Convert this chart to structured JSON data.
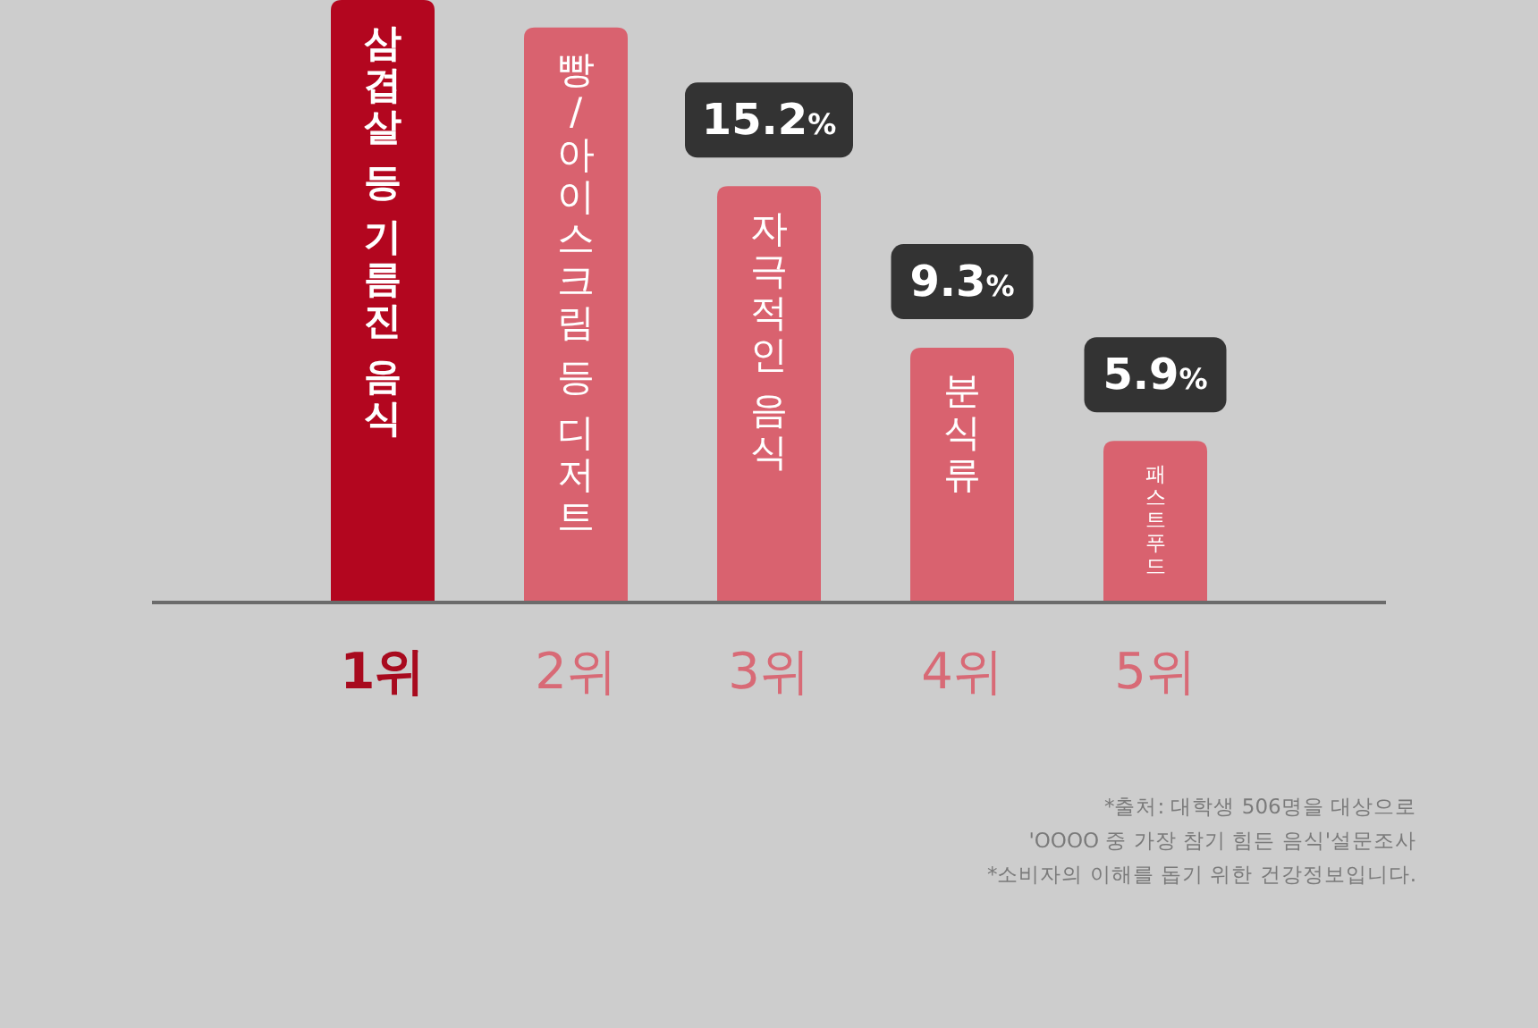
{
  "chart_data": {
    "type": "bar",
    "categories": [
      "1위",
      "2위",
      "3위",
      "4위",
      "5위"
    ],
    "values": [
      22,
      21,
      15.2,
      9.3,
      5.9
    ],
    "colors": [
      "#b3061f",
      "#d9626f",
      "#d9626f",
      "#d9626f",
      "#d9626f"
    ],
    "value_labels": [
      null,
      null,
      "15.2%",
      "9.3%",
      "5.9%"
    ],
    "ylim": [
      0,
      22
    ],
    "tick_labels": "x",
    "annotations": [
      "삼겹살 등 기름진 음식",
      "빵/아이스크림 등 디저트",
      "자극적인 음식",
      "분식류",
      "패스트푸드",
      "*출처: 대학생 506명을 대상으로",
      "'OOOO 중 가장 참기 힘든 음식'설문조사",
      "*소비자의 이해를 돕기 위한 건강정보입니다."
    ]
  }
}
